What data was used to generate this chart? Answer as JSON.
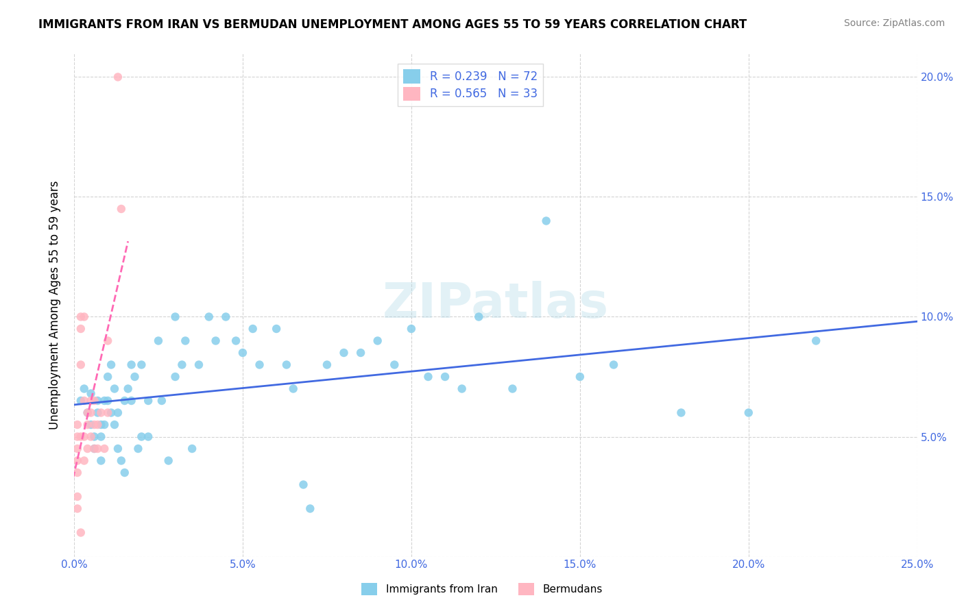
{
  "title": "IMMIGRANTS FROM IRAN VS BERMUDAN UNEMPLOYMENT AMONG AGES 55 TO 59 YEARS CORRELATION CHART",
  "source": "Source: ZipAtlas.com",
  "ylabel": "Unemployment Among Ages 55 to 59 years",
  "xlim": [
    0,
    0.25
  ],
  "ylim": [
    0,
    0.21
  ],
  "xticks": [
    0.0,
    0.05,
    0.1,
    0.15,
    0.2,
    0.25
  ],
  "xticklabels": [
    "0.0%",
    "5.0%",
    "10.0%",
    "15.0%",
    "20.0%",
    "25.0%"
  ],
  "yticks": [
    0.0,
    0.05,
    0.1,
    0.15,
    0.2
  ],
  "yticklabels_right": [
    "",
    "5.0%",
    "10.0%",
    "15.0%",
    "20.0%"
  ],
  "blue_color": "#87CEEB",
  "pink_color": "#FFB6C1",
  "blue_line_color": "#4169E1",
  "pink_line_color": "#FF69B4",
  "legend_label1": "R = 0.239   N = 72",
  "legend_label2": "R = 0.565   N = 33",
  "bottom_legend1": "Immigrants from Iran",
  "bottom_legend2": "Bermudans",
  "blue_scatter_x": [
    0.002,
    0.003,
    0.004,
    0.005,
    0.005,
    0.006,
    0.006,
    0.007,
    0.007,
    0.008,
    0.008,
    0.008,
    0.009,
    0.009,
    0.01,
    0.01,
    0.011,
    0.011,
    0.012,
    0.012,
    0.013,
    0.013,
    0.014,
    0.015,
    0.015,
    0.016,
    0.017,
    0.017,
    0.018,
    0.019,
    0.02,
    0.02,
    0.022,
    0.022,
    0.025,
    0.026,
    0.028,
    0.03,
    0.03,
    0.032,
    0.033,
    0.035,
    0.037,
    0.04,
    0.042,
    0.045,
    0.048,
    0.05,
    0.053,
    0.055,
    0.06,
    0.063,
    0.065,
    0.068,
    0.07,
    0.075,
    0.08,
    0.085,
    0.09,
    0.095,
    0.1,
    0.105,
    0.11,
    0.115,
    0.12,
    0.13,
    0.14,
    0.15,
    0.16,
    0.18,
    0.2,
    0.22
  ],
  "blue_scatter_y": [
    0.065,
    0.07,
    0.06,
    0.055,
    0.068,
    0.05,
    0.045,
    0.06,
    0.065,
    0.05,
    0.055,
    0.04,
    0.065,
    0.055,
    0.075,
    0.065,
    0.06,
    0.08,
    0.07,
    0.055,
    0.045,
    0.06,
    0.04,
    0.035,
    0.065,
    0.07,
    0.08,
    0.065,
    0.075,
    0.045,
    0.08,
    0.05,
    0.05,
    0.065,
    0.09,
    0.065,
    0.04,
    0.075,
    0.1,
    0.08,
    0.09,
    0.045,
    0.08,
    0.1,
    0.09,
    0.1,
    0.09,
    0.085,
    0.095,
    0.08,
    0.095,
    0.08,
    0.07,
    0.03,
    0.02,
    0.08,
    0.085,
    0.085,
    0.09,
    0.08,
    0.095,
    0.075,
    0.075,
    0.07,
    0.1,
    0.07,
    0.14,
    0.075,
    0.08,
    0.06,
    0.06,
    0.09
  ],
  "pink_scatter_x": [
    0.001,
    0.001,
    0.001,
    0.001,
    0.001,
    0.001,
    0.001,
    0.002,
    0.002,
    0.002,
    0.002,
    0.002,
    0.003,
    0.003,
    0.003,
    0.003,
    0.004,
    0.004,
    0.004,
    0.005,
    0.005,
    0.005,
    0.006,
    0.006,
    0.006,
    0.007,
    0.007,
    0.008,
    0.009,
    0.01,
    0.01,
    0.013,
    0.014
  ],
  "pink_scatter_y": [
    0.055,
    0.05,
    0.045,
    0.04,
    0.035,
    0.025,
    0.02,
    0.1,
    0.095,
    0.08,
    0.05,
    0.01,
    0.1,
    0.065,
    0.05,
    0.04,
    0.06,
    0.055,
    0.045,
    0.065,
    0.06,
    0.05,
    0.065,
    0.055,
    0.045,
    0.055,
    0.045,
    0.06,
    0.045,
    0.09,
    0.06,
    0.2,
    0.145
  ]
}
